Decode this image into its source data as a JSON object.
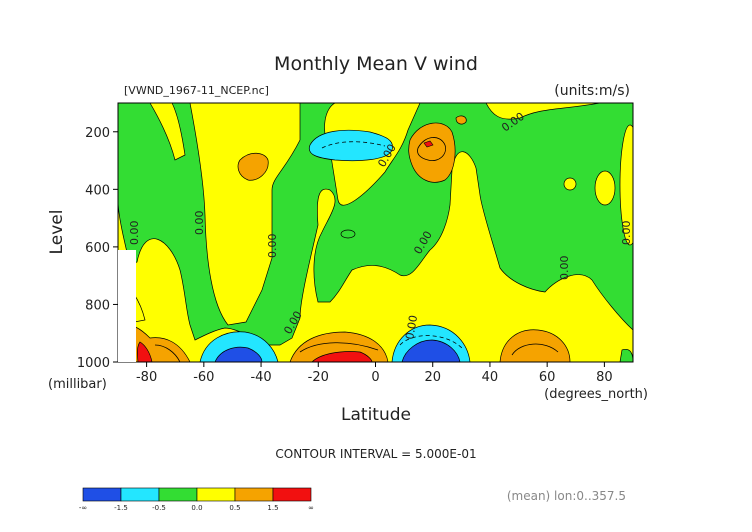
{
  "chart_data": {
    "type": "contour",
    "title": "Monthly Mean V wind",
    "file_label": "[VWND_1967-11_NCEP.nc]",
    "units_label": "(units:m/s)",
    "xlabel": "Latitude",
    "x_units": "(degrees_north)",
    "ylabel": "Level",
    "y_units": "(millibar)",
    "x_ticks": [
      "-80",
      "-60",
      "-40",
      "-20",
      "0",
      "20",
      "40",
      "60",
      "80"
    ],
    "y_ticks": [
      "200",
      "400",
      "600",
      "800",
      "1000"
    ],
    "xlim": [
      -90,
      90
    ],
    "ylim": [
      1000,
      100
    ],
    "contour_interval_text": "CONTOUR INTERVAL = 5.000E-01",
    "contour_labels": [
      "0.00",
      "0.00",
      "0.00",
      "0.00",
      "0.00",
      "0.00",
      "0.00",
      "0.00",
      "0.00",
      "0.00"
    ],
    "colorbar": {
      "colors": [
        "#1f4fe6",
        "#23e6ff",
        "#33dd33",
        "#ffff00",
        "#f5a300",
        "#f21010"
      ],
      "labels": [
        "-∞",
        "-1.5",
        "-0.5",
        "0.0",
        "0.5",
        "1.5",
        "∞"
      ]
    },
    "footer_note": "(mean) lon:0..357.5"
  }
}
